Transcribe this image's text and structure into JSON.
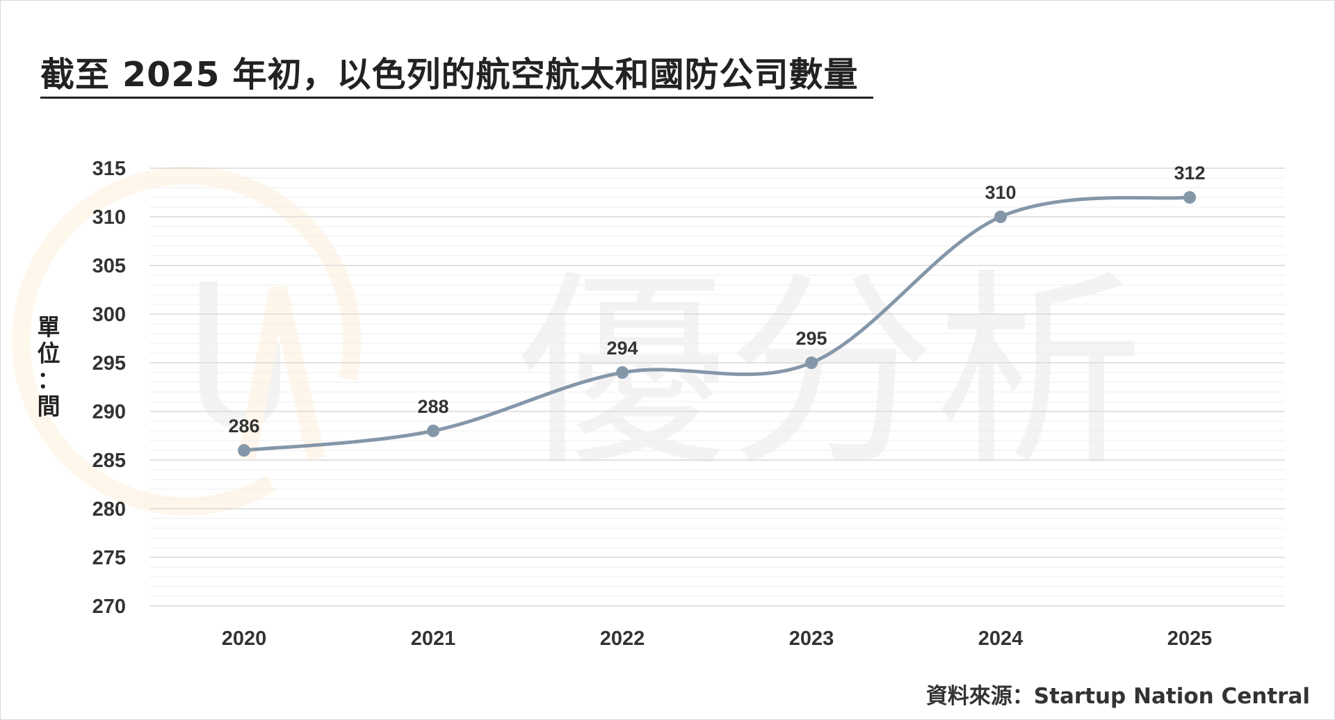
{
  "title": "截至 2025 年初，以色列的航空航太和國防公司數量",
  "y_unit": "單\n位\n：\n間",
  "source": "資料來源：Startup Nation Central",
  "watermark": {
    "text": "優分析",
    "logo_icon": "ua-circle-logo-icon"
  },
  "colors": {
    "line": "#8497a9",
    "text": "#333333",
    "grid_major": "#d9d9d9",
    "grid_minor": "#eeeeee",
    "logo_orange": "#f5a623"
  },
  "chart_data": {
    "type": "line",
    "title": "截至 2025 年初，以色列的航空航太和國防公司數量",
    "xlabel": "",
    "ylabel": "單位：間",
    "categories": [
      "2020",
      "2021",
      "2022",
      "2023",
      "2024",
      "2025"
    ],
    "series": [
      {
        "values": [
          286,
          288,
          294,
          295,
          310,
          312
        ]
      }
    ],
    "data_labels": [
      "286",
      "288",
      "294",
      "295",
      "310",
      "312"
    ],
    "ylim": [
      270,
      315
    ],
    "y_ticks": [
      270,
      275,
      280,
      285,
      290,
      295,
      300,
      305,
      310,
      315
    ],
    "y_tick_labels": [
      "270",
      "275",
      "280",
      "285",
      "290",
      "295",
      "300",
      "305",
      "310",
      "315"
    ],
    "grid": true,
    "minor_grid": true,
    "smooth": true,
    "legend": "none"
  }
}
